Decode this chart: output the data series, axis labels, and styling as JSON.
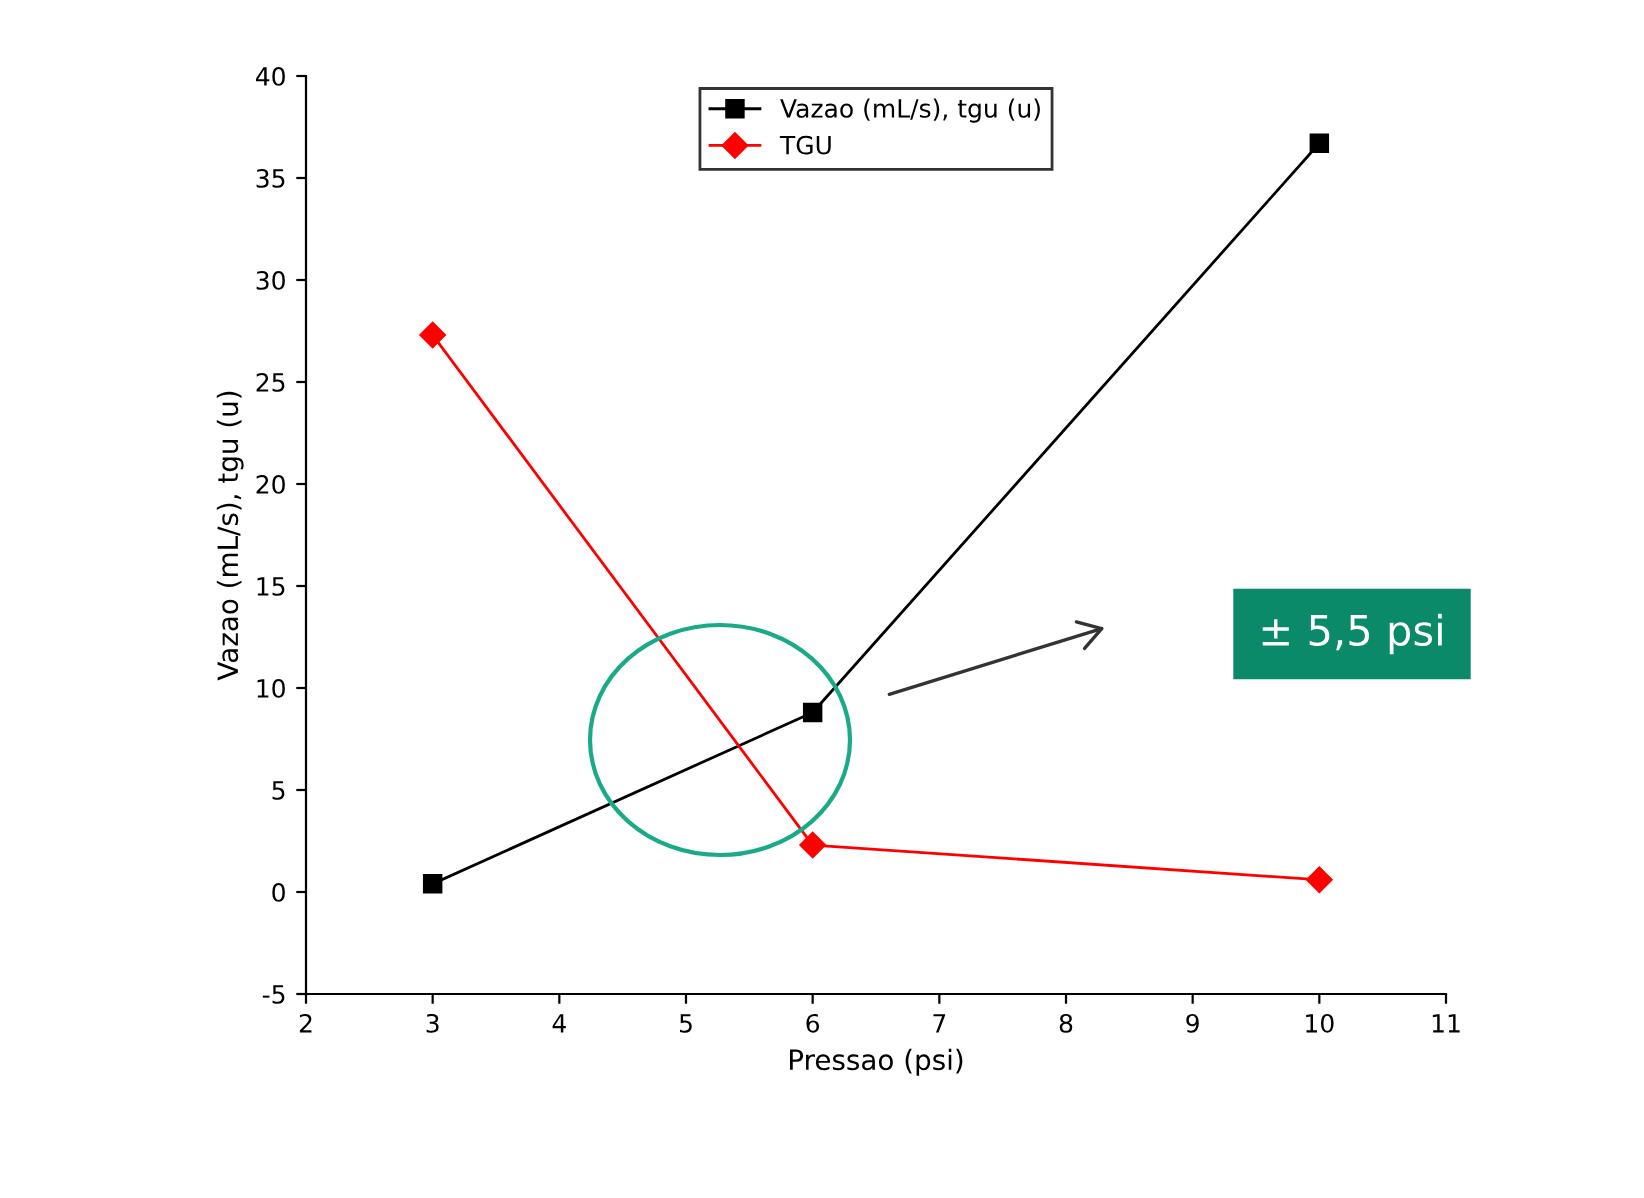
{
  "chart_data": {
    "type": "line",
    "xlabel": "Pressao (psi)",
    "ylabel": "Vazao (mL/s), tgu (u)",
    "x": [
      3,
      6,
      10
    ],
    "series": [
      {
        "name": "Vazao (mL/s), tgu (u)",
        "color": "#000000",
        "values": [
          0.4,
          8.8,
          36.7
        ],
        "marker": "square"
      },
      {
        "name": "TGU",
        "color": "#ff0000",
        "values": [
          27.3,
          2.3,
          0.6
        ],
        "marker": "diamond"
      }
    ],
    "xlim": [
      2,
      11
    ],
    "xticks": [
      2,
      3,
      4,
      5,
      6,
      7,
      8,
      9,
      10,
      11
    ],
    "ylim": [
      -5,
      40
    ],
    "yticks": [
      -5,
      0,
      5,
      10,
      15,
      20,
      25,
      30,
      35,
      40
    ],
    "grid": false,
    "legend": "top",
    "line_style": "solid",
    "annotations": [
      "± 5,5 psi"
    ]
  }
}
